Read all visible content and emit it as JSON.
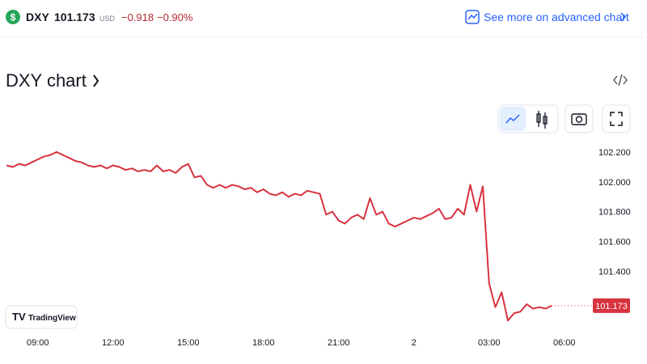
{
  "header": {
    "symbol": "DXY",
    "price": "101.173",
    "currency": "USD",
    "change": "−0.918",
    "change_percent": "−0.90%",
    "link": "See more on advanced chart"
  },
  "branding": {
    "logo_text": "TradingView"
  },
  "chart_data": {
    "type": "line",
    "title": "DXY chart",
    "color": "#d8323f",
    "categories": [
      null,
      null,
      null,
      null,
      null,
      "09:00",
      null,
      null,
      null,
      null,
      null,
      null,
      null,
      null,
      null,
      null,
      null,
      "12:00",
      null,
      null,
      null,
      null,
      null,
      null,
      null,
      null,
      null,
      null,
      null,
      "15:00",
      null,
      null,
      null,
      null,
      null,
      null,
      null,
      null,
      null,
      null,
      null,
      "18:00",
      null,
      null,
      null,
      null,
      null,
      null,
      null,
      null,
      null,
      null,
      null,
      "21:00",
      null,
      null,
      null,
      null,
      null,
      null,
      null,
      null,
      null,
      null,
      null,
      "2",
      null,
      null,
      null,
      null,
      null,
      null,
      null,
      null,
      null,
      null,
      null,
      "03:00",
      null,
      null,
      null,
      null,
      null,
      null,
      null,
      null,
      null,
      null,
      null,
      "06:00"
    ],
    "values": [
      102.11,
      102.1,
      102.12,
      102.11,
      102.13,
      102.15,
      102.17,
      102.18,
      102.2,
      102.18,
      102.16,
      102.14,
      102.13,
      102.11,
      102.1,
      102.11,
      102.09,
      102.11,
      102.1,
      102.08,
      102.09,
      102.07,
      102.08,
      102.07,
      102.11,
      102.07,
      102.08,
      102.06,
      102.1,
      102.12,
      102.03,
      102.04,
      101.98,
      101.96,
      101.98,
      101.96,
      101.98,
      101.97,
      101.95,
      101.96,
      101.93,
      101.95,
      101.92,
      101.91,
      101.93,
      101.9,
      101.92,
      101.91,
      101.94,
      101.93,
      101.92,
      101.78,
      101.8,
      101.74,
      101.72,
      101.76,
      101.78,
      101.75,
      101.89,
      101.78,
      101.8,
      101.72,
      101.7,
      101.72,
      101.74,
      101.76,
      101.75,
      101.77,
      101.79,
      101.82,
      101.75,
      101.76,
      101.82,
      101.78,
      101.98,
      101.8,
      101.97,
      101.32,
      101.16,
      101.26,
      101.07,
      101.12,
      101.13,
      101.18,
      101.15,
      101.16,
      101.15,
      101.17,
      null,
      null
    ],
    "ylim": [
      101.05,
      102.27
    ],
    "yticks": [
      {
        "value": 101.4,
        "label": "101.400"
      },
      {
        "value": 101.6,
        "label": "101.600"
      },
      {
        "value": 101.8,
        "label": "101.800"
      },
      {
        "value": 102,
        "label": "102.000"
      },
      {
        "value": 102.2,
        "label": "102.200"
      }
    ],
    "grid": false
  }
}
